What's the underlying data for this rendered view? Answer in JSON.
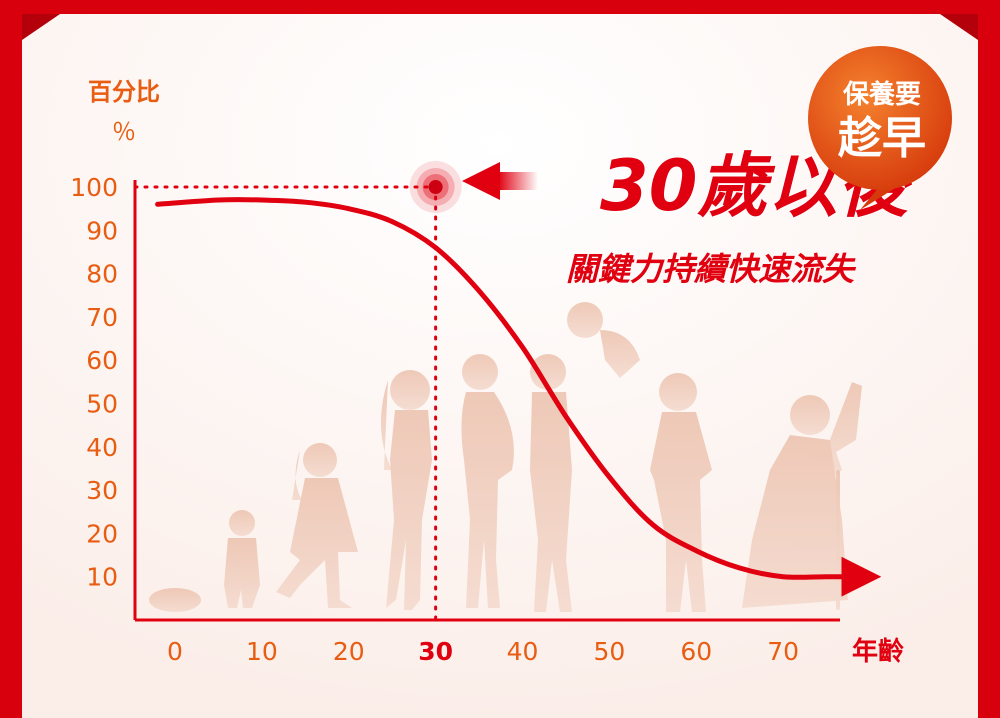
{
  "chart_data": {
    "type": "line",
    "ylabel": "百分比",
    "yunit": "％",
    "xlabel": "年齡",
    "y_ticks": [
      "100",
      "90",
      "80",
      "70",
      "60",
      "50",
      "40",
      "30",
      "20",
      "10"
    ],
    "x_ticks": [
      "0",
      "10",
      "20",
      "30",
      "40",
      "50",
      "60",
      "70"
    ],
    "highlight_x": 30,
    "highlight_x_label": "30",
    "headline": "30歲以後",
    "subheadline": "關鍵力持續快速流失",
    "badge_line1": "保養要",
    "badge_line2": "趁早",
    "xlim": [
      0,
      80
    ],
    "ylim": [
      0,
      100
    ],
    "series": [
      {
        "x": [
          -2,
          5,
          10,
          15,
          20,
          25,
          30,
          35,
          40,
          45,
          50,
          55,
          60,
          65,
          70,
          75,
          79
        ],
        "y": [
          96,
          97,
          97,
          96.5,
          95,
          92,
          86,
          76,
          63,
          47,
          33,
          22,
          16,
          12,
          10,
          10,
          10
        ]
      }
    ]
  },
  "colors": {
    "accent": "#e0000f",
    "axis_text": "#e85d12",
    "silhouette": "#f1cdbd",
    "badge": "#e8501a"
  }
}
